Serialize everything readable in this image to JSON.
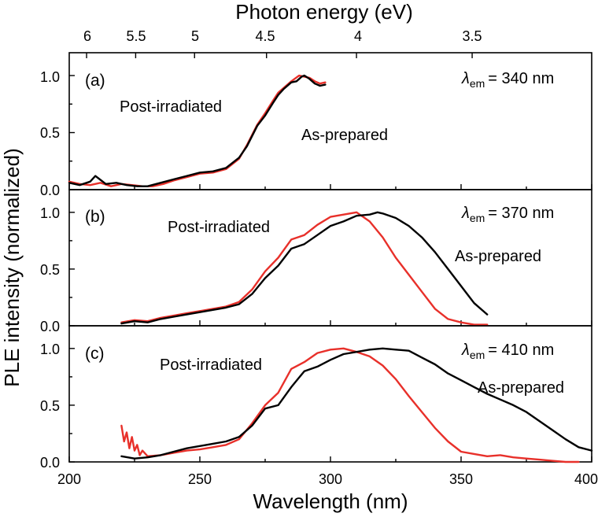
{
  "chart_data": {
    "type": "line",
    "xlabel": "Wavelength (nm)",
    "ylabel": "PLE intensity (normalized)",
    "top_axis_label": "Photon energy (eV)",
    "xlim": [
      200,
      400
    ],
    "ylim": [
      0,
      1.2
    ],
    "x_ticks": [
      "200",
      "250",
      "300",
      "350",
      "400"
    ],
    "y_ticks": [
      "0.0",
      "0.5",
      "1.0"
    ],
    "top_ticks": [
      "6",
      "5.5",
      "5",
      "4.5",
      "4",
      "3.5"
    ],
    "series_colors": {
      "as_prepared": "#000000",
      "post_irradiated": "#e8302a"
    },
    "panels": [
      {
        "label": "(a)",
        "lambda_em": "= 340 nm",
        "annotations": {
          "post": "Post-irradiated",
          "as": "As-prepared"
        },
        "series": [
          {
            "name": "As-prepared",
            "key": "as_prepared",
            "x": [
              200,
              204,
              208,
              210,
              214,
              218,
              222,
              226,
              230,
              235,
              240,
              245,
              250,
              255,
              260,
              265,
              268,
              272,
              275,
              278,
              280,
              282,
              285,
              287,
              289,
              290,
              292,
              294,
              296,
              298
            ],
            "y": [
              0.06,
              0.04,
              0.07,
              0.12,
              0.05,
              0.06,
              0.04,
              0.03,
              0.03,
              0.06,
              0.09,
              0.12,
              0.15,
              0.16,
              0.19,
              0.28,
              0.38,
              0.56,
              0.65,
              0.76,
              0.83,
              0.88,
              0.94,
              0.95,
              0.99,
              1.0,
              0.97,
              0.93,
              0.91,
              0.92
            ]
          },
          {
            "name": "Post-irradiated",
            "key": "post_irradiated",
            "x": [
              200,
              204,
              208,
              212,
              216,
              220,
              224,
              228,
              232,
              236,
              240,
              245,
              250,
              255,
              260,
              265,
              268,
              272,
              275,
              278,
              280,
              283,
              285,
              288,
              290,
              292,
              294,
              296,
              298
            ],
            "y": [
              0.07,
              0.05,
              0.04,
              0.06,
              0.03,
              0.05,
              0.04,
              0.03,
              0.03,
              0.05,
              0.08,
              0.11,
              0.14,
              0.15,
              0.18,
              0.27,
              0.39,
              0.57,
              0.67,
              0.78,
              0.85,
              0.91,
              0.95,
              1.0,
              0.99,
              0.98,
              0.95,
              0.93,
              0.94
            ]
          }
        ]
      },
      {
        "label": "(b)",
        "lambda_em": "= 370 nm",
        "annotations": {
          "post": "Post-irradiated",
          "as": "As-prepared"
        },
        "series": [
          {
            "name": "As-prepared",
            "key": "as_prepared",
            "x": [
              220,
              225,
              230,
              235,
              240,
              245,
              250,
              255,
              260,
              265,
              270,
              275,
              280,
              285,
              290,
              295,
              300,
              305,
              310,
              315,
              318,
              320,
              325,
              330,
              335,
              340,
              345,
              350,
              355,
              360
            ],
            "y": [
              0.02,
              0.04,
              0.03,
              0.06,
              0.08,
              0.1,
              0.12,
              0.14,
              0.16,
              0.19,
              0.28,
              0.42,
              0.53,
              0.68,
              0.72,
              0.8,
              0.88,
              0.92,
              0.97,
              0.98,
              1.0,
              0.99,
              0.95,
              0.88,
              0.78,
              0.65,
              0.5,
              0.35,
              0.2,
              0.1
            ]
          },
          {
            "name": "Post-irradiated",
            "key": "post_irradiated",
            "x": [
              220,
              225,
              230,
              235,
              240,
              245,
              250,
              255,
              260,
              265,
              270,
              275,
              280,
              285,
              290,
              295,
              300,
              305,
              310,
              315,
              320,
              325,
              330,
              335,
              340,
              345,
              350,
              355,
              360
            ],
            "y": [
              0.03,
              0.05,
              0.04,
              0.07,
              0.09,
              0.11,
              0.13,
              0.15,
              0.17,
              0.21,
              0.32,
              0.48,
              0.6,
              0.76,
              0.8,
              0.89,
              0.96,
              0.98,
              1.0,
              0.92,
              0.78,
              0.6,
              0.45,
              0.3,
              0.15,
              0.06,
              0.03,
              0.01,
              0.01
            ]
          }
        ]
      },
      {
        "label": "(c)",
        "lambda_em": "= 410 nm",
        "annotations": {
          "post": "Post-irradiated",
          "as": "As-prepared"
        },
        "series": [
          {
            "name": "As-prepared",
            "key": "as_prepared",
            "x": [
              220,
              225,
              230,
              235,
              240,
              245,
              250,
              255,
              260,
              265,
              270,
              275,
              280,
              285,
              290,
              295,
              300,
              305,
              310,
              315,
              320,
              325,
              330,
              335,
              340,
              345,
              350,
              355,
              360,
              365,
              370,
              375,
              380,
              385,
              390,
              395,
              400
            ],
            "y": [
              0.05,
              0.03,
              0.04,
              0.06,
              0.09,
              0.12,
              0.14,
              0.16,
              0.18,
              0.22,
              0.32,
              0.47,
              0.5,
              0.66,
              0.8,
              0.84,
              0.9,
              0.95,
              0.97,
              0.99,
              1.0,
              0.99,
              0.98,
              0.92,
              0.86,
              0.78,
              0.72,
              0.66,
              0.6,
              0.55,
              0.5,
              0.44,
              0.36,
              0.28,
              0.2,
              0.13,
              0.1
            ]
          },
          {
            "name": "Post-irradiated",
            "key": "post_irradiated",
            "x": [
              220,
              221,
              222,
              223,
              224,
              225,
              226,
              227,
              228,
              230,
              235,
              240,
              245,
              250,
              255,
              260,
              265,
              270,
              275,
              280,
              285,
              290,
              295,
              300,
              305,
              310,
              315,
              320,
              325,
              330,
              335,
              340,
              345,
              350,
              355,
              360,
              365,
              370,
              375,
              380,
              385,
              390,
              395
            ],
            "y": [
              0.32,
              0.18,
              0.26,
              0.12,
              0.22,
              0.1,
              0.15,
              0.06,
              0.1,
              0.05,
              0.06,
              0.08,
              0.1,
              0.11,
              0.13,
              0.15,
              0.2,
              0.34,
              0.5,
              0.61,
              0.82,
              0.88,
              0.96,
              0.99,
              1.0,
              0.97,
              0.93,
              0.85,
              0.73,
              0.58,
              0.44,
              0.3,
              0.18,
              0.09,
              0.07,
              0.05,
              0.06,
              0.04,
              0.03,
              0.02,
              0.01,
              0.0,
              0.0
            ]
          }
        ]
      }
    ]
  }
}
